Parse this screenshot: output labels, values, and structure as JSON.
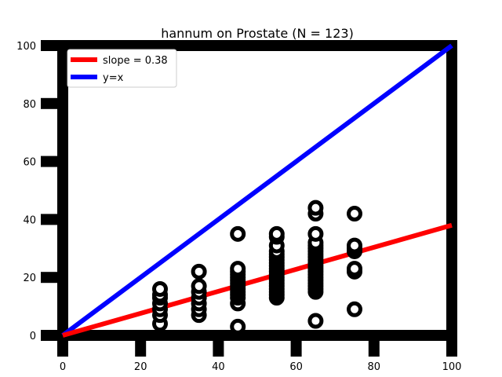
{
  "chart_data": {
    "type": "scatter",
    "title": "hannum on Prostate (N = 123)",
    "xlabel": "",
    "ylabel": "",
    "xlim": [
      0,
      100
    ],
    "ylim": [
      0,
      100
    ],
    "xticks": [
      0,
      20,
      40,
      60,
      80,
      100
    ],
    "yticks": [
      0,
      20,
      40,
      60,
      80,
      100
    ],
    "grid": false,
    "legend_position": "top-left",
    "points": [
      {
        "x": 25,
        "y": 4
      },
      {
        "x": 25,
        "y": 7
      },
      {
        "x": 25,
        "y": 9
      },
      {
        "x": 25,
        "y": 11
      },
      {
        "x": 25,
        "y": 13
      },
      {
        "x": 25,
        "y": 14
      },
      {
        "x": 25,
        "y": 16
      },
      {
        "x": 35,
        "y": 7
      },
      {
        "x": 35,
        "y": 9
      },
      {
        "x": 35,
        "y": 11
      },
      {
        "x": 35,
        "y": 13
      },
      {
        "x": 35,
        "y": 15
      },
      {
        "x": 35,
        "y": 17
      },
      {
        "x": 35,
        "y": 22
      },
      {
        "x": 45,
        "y": 3
      },
      {
        "x": 45,
        "y": 11
      },
      {
        "x": 45,
        "y": 13
      },
      {
        "x": 45,
        "y": 14
      },
      {
        "x": 45,
        "y": 15
      },
      {
        "x": 45,
        "y": 16
      },
      {
        "x": 45,
        "y": 17
      },
      {
        "x": 45,
        "y": 18
      },
      {
        "x": 45,
        "y": 19
      },
      {
        "x": 45,
        "y": 20
      },
      {
        "x": 45,
        "y": 21
      },
      {
        "x": 45,
        "y": 22
      },
      {
        "x": 45,
        "y": 23
      },
      {
        "x": 45,
        "y": 35
      },
      {
        "x": 55,
        "y": 13
      },
      {
        "x": 55,
        "y": 14
      },
      {
        "x": 55,
        "y": 15
      },
      {
        "x": 55,
        "y": 16
      },
      {
        "x": 55,
        "y": 17
      },
      {
        "x": 55,
        "y": 18
      },
      {
        "x": 55,
        "y": 19
      },
      {
        "x": 55,
        "y": 20
      },
      {
        "x": 55,
        "y": 21
      },
      {
        "x": 55,
        "y": 22
      },
      {
        "x": 55,
        "y": 23
      },
      {
        "x": 55,
        "y": 24
      },
      {
        "x": 55,
        "y": 25
      },
      {
        "x": 55,
        "y": 26
      },
      {
        "x": 55,
        "y": 27
      },
      {
        "x": 55,
        "y": 28
      },
      {
        "x": 55,
        "y": 29
      },
      {
        "x": 55,
        "y": 31
      },
      {
        "x": 55,
        "y": 34
      },
      {
        "x": 55,
        "y": 35
      },
      {
        "x": 65,
        "y": 5
      },
      {
        "x": 65,
        "y": 15
      },
      {
        "x": 65,
        "y": 16
      },
      {
        "x": 65,
        "y": 17
      },
      {
        "x": 65,
        "y": 18
      },
      {
        "x": 65,
        "y": 19
      },
      {
        "x": 65,
        "y": 20
      },
      {
        "x": 65,
        "y": 21
      },
      {
        "x": 65,
        "y": 22
      },
      {
        "x": 65,
        "y": 23
      },
      {
        "x": 65,
        "y": 24
      },
      {
        "x": 65,
        "y": 25
      },
      {
        "x": 65,
        "y": 26
      },
      {
        "x": 65,
        "y": 27
      },
      {
        "x": 65,
        "y": 28
      },
      {
        "x": 65,
        "y": 29
      },
      {
        "x": 65,
        "y": 30
      },
      {
        "x": 65,
        "y": 31
      },
      {
        "x": 65,
        "y": 32
      },
      {
        "x": 65,
        "y": 35
      },
      {
        "x": 65,
        "y": 42
      },
      {
        "x": 65,
        "y": 44
      },
      {
        "x": 75,
        "y": 9
      },
      {
        "x": 75,
        "y": 22
      },
      {
        "x": 75,
        "y": 23
      },
      {
        "x": 75,
        "y": 29
      },
      {
        "x": 75,
        "y": 30
      },
      {
        "x": 75,
        "y": 31
      },
      {
        "x": 75,
        "y": 42
      }
    ],
    "lines": [
      {
        "name": "slope = 0.38",
        "color": "#ff0000",
        "x": [
          0,
          100
        ],
        "y": [
          0,
          38
        ]
      },
      {
        "name": "y=x",
        "color": "#0000ff",
        "x": [
          0,
          100
        ],
        "y": [
          0,
          100
        ]
      }
    ],
    "marker_color": "#000000",
    "frame_color": "#000000"
  }
}
